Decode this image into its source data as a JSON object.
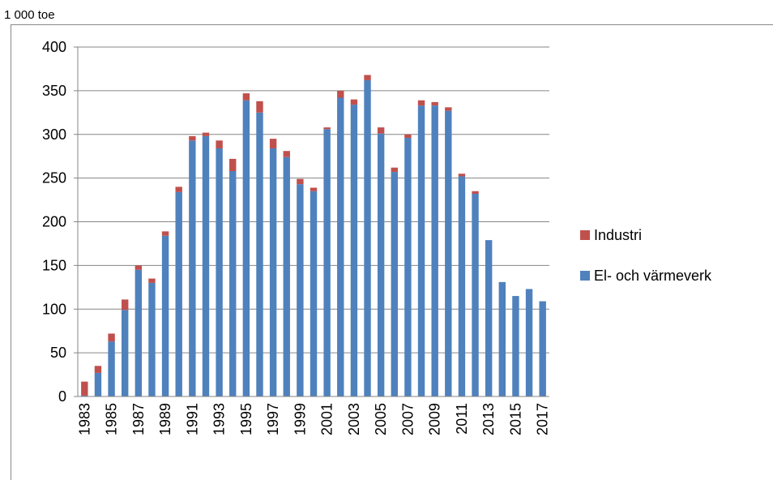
{
  "chart_data": {
    "type": "stacked_bar",
    "y_axis_unit": "1 000 toe",
    "categories": [
      "1983",
      null,
      "1985",
      null,
      "1987",
      null,
      "1989",
      null,
      "1991",
      null,
      "1993",
      null,
      "1995",
      null,
      "1997",
      null,
      "1999",
      null,
      "2001",
      null,
      "2003",
      null,
      "2005",
      null,
      "2007",
      null,
      "2009",
      null,
      "2011",
      null,
      "2013",
      null,
      "2015",
      null,
      "2017"
    ],
    "series": [
      {
        "name": "El- och värmeverk",
        "color": "#4f81bd",
        "values": [
          1,
          27,
          63,
          99,
          145,
          130,
          184,
          234,
          293,
          298,
          284,
          258,
          339,
          325,
          284,
          274,
          243,
          235,
          306,
          342,
          334,
          362,
          301,
          257,
          296,
          333,
          333,
          327,
          252,
          232,
          179,
          131,
          115,
          123,
          109
        ]
      },
      {
        "name": "Industri",
        "color": "#c0504d",
        "values": [
          16,
          8,
          9,
          12,
          5,
          5,
          5,
          6,
          5,
          4,
          9,
          14,
          8,
          13,
          11,
          7,
          6,
          4,
          2,
          8,
          6,
          6,
          7,
          5,
          4,
          6,
          4,
          4,
          3,
          3,
          0,
          0,
          0,
          0,
          0
        ]
      }
    ],
    "ylim": [
      0,
      400
    ],
    "yticks": [
      0,
      50,
      100,
      150,
      200,
      250,
      300,
      350,
      400
    ],
    "grid": true,
    "legend": "right"
  }
}
